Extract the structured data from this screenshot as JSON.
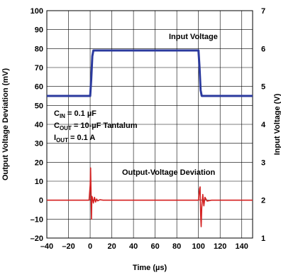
{
  "chart_data": {
    "type": "line",
    "xlabel": "Time (µs)",
    "ylabel_left": "Output Voltage Deviation (mV)",
    "ylabel_right": "Input Voltage (V)",
    "xlim": [
      -40,
      150
    ],
    "ylim_left": [
      -20,
      100
    ],
    "ylim_right": [
      1,
      7
    ],
    "x_ticks": [
      -40,
      -20,
      0,
      20,
      40,
      60,
      80,
      100,
      120,
      140
    ],
    "y_left_ticks": [
      -20,
      -10,
      0,
      10,
      20,
      30,
      40,
      50,
      60,
      70,
      80,
      90,
      100
    ],
    "y_right_ticks": [
      1,
      2,
      3,
      4,
      5,
      6,
      7
    ],
    "grid": true,
    "series": [
      {
        "name": "Input Voltage",
        "axis": "right",
        "color": "#2b3a9e",
        "x": [
          -40,
          0,
          1,
          2,
          3,
          100,
          101,
          102,
          103,
          150
        ],
        "y": [
          4.75,
          4.75,
          5.2,
          5.8,
          5.95,
          5.95,
          5.5,
          4.9,
          4.75,
          4.75
        ]
      },
      {
        "name": "Output-Voltage Deviation",
        "axis": "left",
        "color": "#d42020",
        "x": [
          -40,
          -1,
          0,
          0.4,
          0.8,
          1.2,
          1.6,
          2,
          3,
          4,
          5,
          6,
          7,
          9,
          12,
          100,
          101,
          101.5,
          102,
          102.5,
          103,
          104,
          105,
          106,
          108,
          112,
          150
        ],
        "y": [
          0,
          0,
          8,
          17,
          4,
          -10,
          2,
          1.5,
          -1.5,
          1.5,
          -1,
          0.6,
          -0.4,
          0.2,
          0,
          0,
          6,
          7,
          -7,
          -14,
          -4,
          3,
          -3,
          1.5,
          -0.5,
          0,
          0
        ]
      }
    ],
    "annotations": {
      "input_label": "Input Voltage",
      "output_label": "Output-Voltage Deviation",
      "cin": {
        "main": "C",
        "sub": "IN",
        "rest": " = 0.1 µF"
      },
      "cout": {
        "main": "C",
        "sub": "OUT",
        "rest": " = 10-µF Tantalum"
      },
      "iout": {
        "main": "I",
        "sub": "OUT",
        "rest": " = 0.1 A"
      }
    }
  }
}
